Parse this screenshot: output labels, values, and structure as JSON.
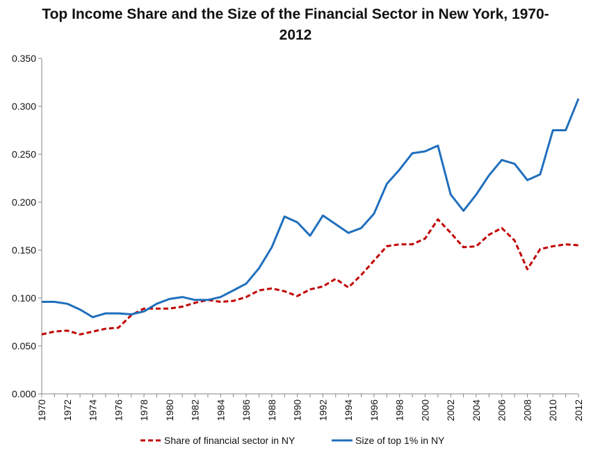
{
  "chart_data": {
    "type": "line",
    "title": "Top Income Share and the Size of the Financial Sector in New York, 1970-2012",
    "x": [
      1970,
      1971,
      1972,
      1973,
      1974,
      1975,
      1976,
      1977,
      1978,
      1979,
      1980,
      1981,
      1982,
      1983,
      1984,
      1985,
      1986,
      1987,
      1988,
      1989,
      1990,
      1991,
      1992,
      1993,
      1994,
      1995,
      1996,
      1997,
      1998,
      1999,
      2000,
      2001,
      2002,
      2003,
      2004,
      2005,
      2006,
      2007,
      2008,
      2009,
      2010,
      2011,
      2012
    ],
    "x_tick_labels": [
      "1970",
      "1972",
      "1974",
      "1976",
      "1978",
      "1980",
      "1982",
      "1984",
      "1986",
      "1988",
      "1990",
      "1992",
      "1994",
      "1996",
      "1998",
      "2000",
      "2002",
      "2004",
      "2006",
      "2008",
      "2010",
      "2012"
    ],
    "y_tick_labels": [
      "0.000",
      "0.050",
      "0.100",
      "0.150",
      "0.200",
      "0.250",
      "0.300",
      "0.350"
    ],
    "ylim": [
      0,
      0.35
    ],
    "xlabel": "",
    "ylabel": "",
    "grid": false,
    "legend_position": "bottom",
    "series": [
      {
        "name": "Share of financial sector in NY",
        "color": "#c00000",
        "style": "dashed",
        "values": [
          0.062,
          0.065,
          0.066,
          0.062,
          0.065,
          0.068,
          0.069,
          0.082,
          0.089,
          0.089,
          0.089,
          0.091,
          0.095,
          0.098,
          0.096,
          0.097,
          0.101,
          0.108,
          0.11,
          0.107,
          0.102,
          0.109,
          0.112,
          0.12,
          0.111,
          0.124,
          0.139,
          0.154,
          0.156,
          0.156,
          0.162,
          0.182,
          0.168,
          0.153,
          0.154,
          0.166,
          0.173,
          0.16,
          0.13,
          0.151,
          0.154,
          0.156,
          0.155
        ]
      },
      {
        "name": "Size of top 1% in NY",
        "color": "#1f6fbd",
        "style": "solid",
        "values": [
          0.096,
          0.096,
          0.094,
          0.088,
          0.08,
          0.084,
          0.084,
          0.083,
          0.086,
          0.094,
          0.099,
          0.101,
          0.098,
          0.098,
          0.101,
          0.108,
          0.115,
          0.131,
          0.153,
          0.185,
          0.179,
          0.165,
          0.186,
          0.177,
          0.168,
          0.173,
          0.188,
          0.219,
          0.234,
          0.251,
          0.253,
          0.259,
          0.208,
          0.191,
          0.208,
          0.228,
          0.244,
          0.24,
          0.223,
          0.229,
          0.275,
          0.275,
          0.308
        ]
      }
    ]
  }
}
